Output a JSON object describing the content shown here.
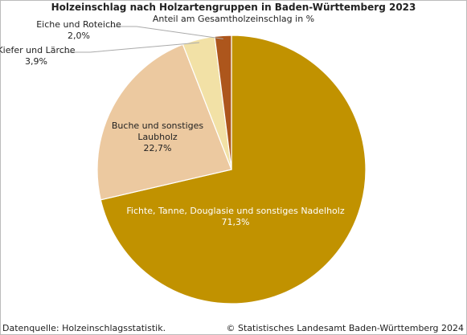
{
  "chart_data": {
    "type": "pie",
    "title": "Holzeinschlag nach Holzartengruppen in Baden-Württemberg 2023",
    "subtitle": "Anteil am Gesamtholzeinschlag in %",
    "categories": [
      "Fichte, Tanne, Douglasie und sonstiges Nadelholz",
      "Buche und sonstiges Laubholz",
      "Kiefer und Lärche",
      "Eiche und Roteiche"
    ],
    "values": [
      71.3,
      22.7,
      3.9,
      2.0
    ],
    "value_labels": [
      "71,3%",
      "22,7%",
      "3,9%",
      "2,0%"
    ],
    "colors": [
      "#c19200",
      "#ecc9a0",
      "#f2e1a6",
      "#ad561c"
    ],
    "source": "Datenquelle: Holzeinschlagsstatistik.",
    "copyright": "© Statistisches Landesamt Baden-Württemberg 2024"
  }
}
